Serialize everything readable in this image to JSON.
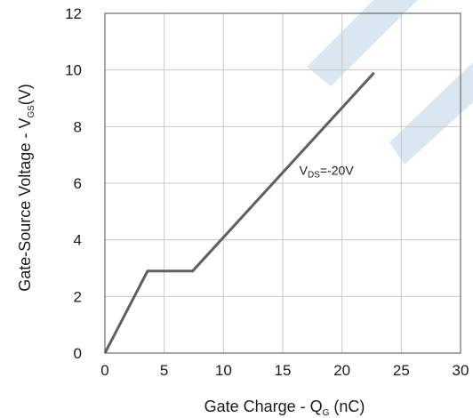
{
  "chart_data": {
    "type": "line",
    "x_label": {
      "main": "Gate Charge - Q",
      "sub": "G",
      "tail": " (nC)"
    },
    "y_label": {
      "main": "Gate-Source Voltage - V",
      "sub": "GS",
      "tail": "(V)"
    },
    "xlim": [
      0,
      30
    ],
    "ylim": [
      0,
      12
    ],
    "x_ticks": [
      0,
      5,
      10,
      15,
      20,
      25,
      30
    ],
    "y_ticks": [
      0,
      2,
      4,
      6,
      8,
      10,
      12
    ],
    "grid": true,
    "series": [
      {
        "points": [
          [
            0,
            0
          ],
          [
            3.6,
            2.9
          ],
          [
            7.4,
            2.9
          ],
          [
            22.7,
            9.9
          ]
        ],
        "color": "#5f5f5f"
      }
    ],
    "annotations": [
      {
        "main": "V",
        "sub": "DS",
        "tail": "=-20V",
        "x": 16.4,
        "y": 6.3
      }
    ],
    "watermark_color": "#bcd4e6"
  }
}
